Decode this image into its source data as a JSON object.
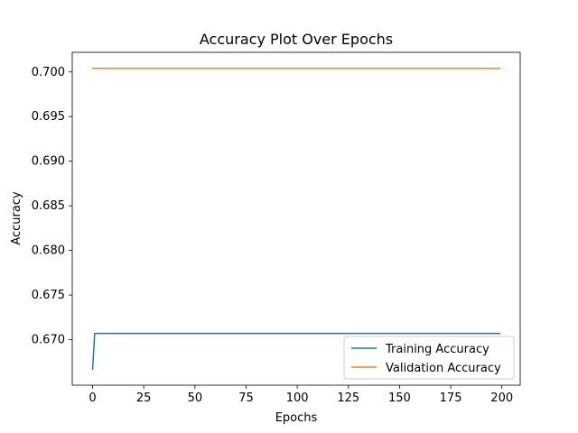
{
  "chart_data": {
    "type": "line",
    "title": "Accuracy Plot Over Epochs",
    "xlabel": "Epochs",
    "ylabel": "Accuracy",
    "xlim": [
      -9.95,
      208.95
    ],
    "ylim": [
      0.6649,
      0.7022
    ],
    "xticks": [
      0,
      25,
      50,
      75,
      100,
      125,
      150,
      175,
      200
    ],
    "yticks": [
      0.67,
      0.675,
      0.68,
      0.685,
      0.69,
      0.695,
      0.7
    ],
    "xtick_labels": [
      "0",
      "25",
      "50",
      "75",
      "100",
      "125",
      "150",
      "175",
      "200"
    ],
    "ytick_labels": [
      "0.670",
      "0.675",
      "0.680",
      "0.685",
      "0.690",
      "0.695",
      "0.700"
    ],
    "grid": false,
    "legend": {
      "placement": "lower-right",
      "entries": [
        "Training Accuracy",
        "Validation Accuracy"
      ]
    },
    "series": [
      {
        "name": "Training Accuracy",
        "color": "#1f77b4",
        "x": [
          0,
          1,
          199
        ],
        "y": [
          0.6667,
          0.6707,
          0.6707
        ]
      },
      {
        "name": "Validation Accuracy",
        "color": "#ff7f0e",
        "x": [
          0,
          199
        ],
        "y": [
          0.7004,
          0.7004
        ]
      }
    ]
  }
}
